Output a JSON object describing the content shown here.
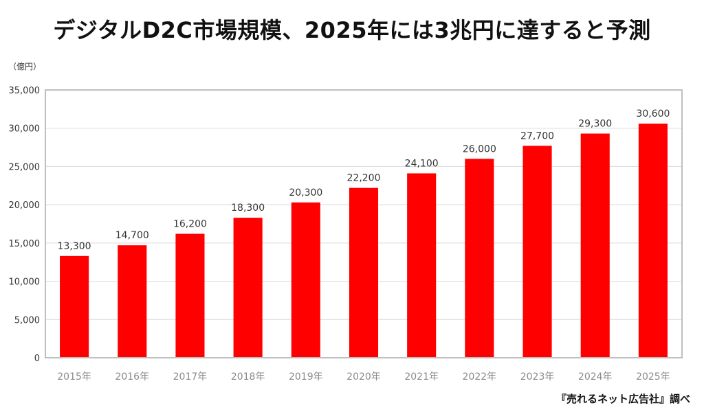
{
  "title": "デジタルD2C市場規模、2025年には3兆円に達すると予測",
  "unit_label": "（億円）",
  "source": "『売れるネット広告社』調べ",
  "colors": {
    "bar": "#ff0000",
    "grid": "#d9d9d9",
    "frame": "#bfbfbf"
  },
  "chart_data": {
    "type": "bar",
    "categories": [
      "2015年",
      "2016年",
      "2017年",
      "2018年",
      "2019年",
      "2020年",
      "2021年",
      "2022年",
      "2023年",
      "2024年",
      "2025年"
    ],
    "values": [
      13300,
      14700,
      16200,
      18300,
      20300,
      22200,
      24100,
      26000,
      27700,
      29300,
      30600
    ],
    "value_labels": [
      "13,300",
      "14,700",
      "16,200",
      "18,300",
      "20,300",
      "22,200",
      "24,100",
      "26,000",
      "27,700",
      "29,300",
      "30,600"
    ],
    "yticks": [
      0,
      5000,
      10000,
      15000,
      20000,
      25000,
      30000,
      35000
    ],
    "ytick_labels": [
      "0",
      "5,000",
      "10,000",
      "15,000",
      "20,000",
      "25,000",
      "30,000",
      "35,000"
    ],
    "ylim": [
      0,
      35000
    ],
    "grid": true,
    "legend": "none"
  }
}
